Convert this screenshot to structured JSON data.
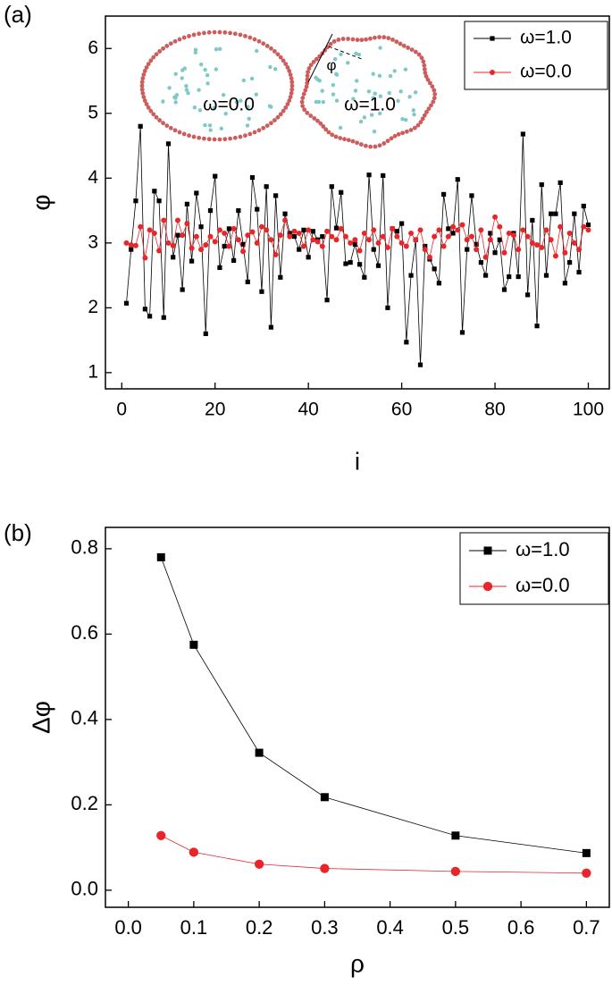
{
  "chart_data": [
    {
      "type": "line",
      "panel_label": "(a)",
      "xlabel": "i",
      "ylabel": "φ",
      "xlim": [
        -3.5,
        104.5
      ],
      "ylim": [
        0.75,
        6.5
      ],
      "xticks": [
        0,
        20,
        40,
        60,
        80,
        100
      ],
      "yticks": [
        1,
        2,
        3,
        4,
        5,
        6
      ],
      "legend": "upper right",
      "annotations": [
        "ω=0.0",
        "ω=1.0",
        "φ"
      ],
      "x": [
        1,
        2,
        3,
        4,
        5,
        6,
        7,
        8,
        9,
        10,
        11,
        12,
        13,
        14,
        15,
        16,
        17,
        18,
        19,
        20,
        21,
        22,
        23,
        24,
        25,
        26,
        27,
        28,
        29,
        30,
        31,
        32,
        33,
        34,
        35,
        36,
        37,
        38,
        39,
        40,
        41,
        42,
        43,
        44,
        45,
        46,
        47,
        48,
        49,
        50,
        51,
        52,
        53,
        54,
        55,
        56,
        57,
        58,
        59,
        60,
        61,
        62,
        63,
        64,
        65,
        66,
        67,
        68,
        69,
        70,
        71,
        72,
        73,
        74,
        75,
        76,
        77,
        78,
        79,
        80,
        81,
        82,
        83,
        84,
        85,
        86,
        87,
        88,
        89,
        90,
        91,
        92,
        93,
        94,
        95,
        96,
        97,
        98,
        99,
        100
      ],
      "series": [
        {
          "name": "ω=1.0",
          "color": "#000000",
          "marker": "square",
          "values": [
            2.07,
            2.9,
            3.65,
            4.8,
            1.98,
            1.87,
            3.8,
            3.65,
            1.85,
            4.53,
            2.78,
            3.12,
            2.28,
            3.6,
            2.72,
            3.77,
            3.25,
            1.6,
            3.5,
            4.03,
            2.62,
            2.95,
            3.22,
            2.73,
            3.5,
            2.98,
            2.4,
            4.01,
            3.52,
            2.25,
            3.87,
            1.7,
            3.73,
            2.47,
            3.45,
            3.15,
            3.1,
            2.9,
            3.2,
            2.78,
            3.18,
            3.05,
            3.1,
            2.12,
            3.87,
            3.23,
            3.78,
            2.68,
            2.7,
            2.98,
            2.67,
            2.47,
            4.05,
            2.9,
            2.65,
            4.04,
            2.0,
            3.22,
            3.18,
            3.3,
            1.47,
            2.5,
            3.05,
            1.12,
            2.95,
            2.75,
            2.6,
            2.38,
            3.75,
            3.22,
            3.15,
            3.98,
            1.62,
            2.9,
            3.73,
            2.98,
            2.7,
            2.5,
            3.15,
            2.85,
            3.05,
            2.28,
            2.48,
            3.15,
            2.48,
            4.68,
            2.2,
            3.35,
            1.72,
            3.9,
            2.5,
            3.45,
            3.45,
            3.93,
            2.38,
            2.7,
            3.45,
            2.55,
            3.57,
            3.28
          ]
        },
        {
          "name": "ω=0.0",
          "color": "#e8262a",
          "marker": "circle",
          "values": [
            3.0,
            2.97,
            2.96,
            3.25,
            2.77,
            3.2,
            3.15,
            2.88,
            3.35,
            3.0,
            2.96,
            3.35,
            3.12,
            3.3,
            2.92,
            3.1,
            2.9,
            2.97,
            3.1,
            3.02,
            3.2,
            3.15,
            2.95,
            3.22,
            3.05,
            2.87,
            3.12,
            3.17,
            3.0,
            3.25,
            3.2,
            3.05,
            2.82,
            3.12,
            3.35,
            3.1,
            3.18,
            3.15,
            2.95,
            3.2,
            3.05,
            3.02,
            2.95,
            3.18,
            3.1,
            3.05,
            3.22,
            3.1,
            3.0,
            3.05,
            2.88,
            3.15,
            3.05,
            3.2,
            3.0,
            3.1,
            2.93,
            3.22,
            3.1,
            3.0,
            2.95,
            3.15,
            3.05,
            3.2,
            2.9,
            2.78,
            3.1,
            3.2,
            2.95,
            3.1,
            3.25,
            3.2,
            3.28,
            3.05,
            3.1,
            2.9,
            3.2,
            2.78,
            3.05,
            3.4,
            3.25,
            2.85,
            3.15,
            3.12,
            2.9,
            3.2,
            3.1,
            3.0,
            2.97,
            2.93,
            3.2,
            3.05,
            2.8,
            3.25,
            2.85,
            3.15,
            3.0,
            2.9,
            3.25,
            3.2
          ]
        }
      ]
    },
    {
      "type": "line",
      "panel_label": "(b)",
      "xlabel": "ρ",
      "ylabel": "Δφ",
      "xlim": [
        -0.035,
        0.735
      ],
      "ylim": [
        -0.04,
        0.85
      ],
      "xticks": [
        {
          "value": 0,
          "label": "0.0"
        },
        0.1,
        0.2,
        0.3,
        0.4,
        0.5,
        0.6,
        0.7
      ],
      "yticks": [
        {
          "value": 0,
          "label": "0.0"
        },
        0.2,
        0.4,
        0.6,
        0.8
      ],
      "legend": "upper right",
      "x": [
        0.05,
        0.1,
        0.2,
        0.3,
        0.5,
        0.7
      ],
      "series": [
        {
          "name": "ω=1.0",
          "color": "#000000",
          "marker": "square",
          "values": [
            0.78,
            0.575,
            0.322,
            0.218,
            0.128,
            0.087
          ]
        },
        {
          "name": "ω=0.0",
          "color": "#e8262a",
          "marker": "circle",
          "values": [
            0.128,
            0.089,
            0.061,
            0.051,
            0.044,
            0.04
          ]
        }
      ]
    }
  ]
}
